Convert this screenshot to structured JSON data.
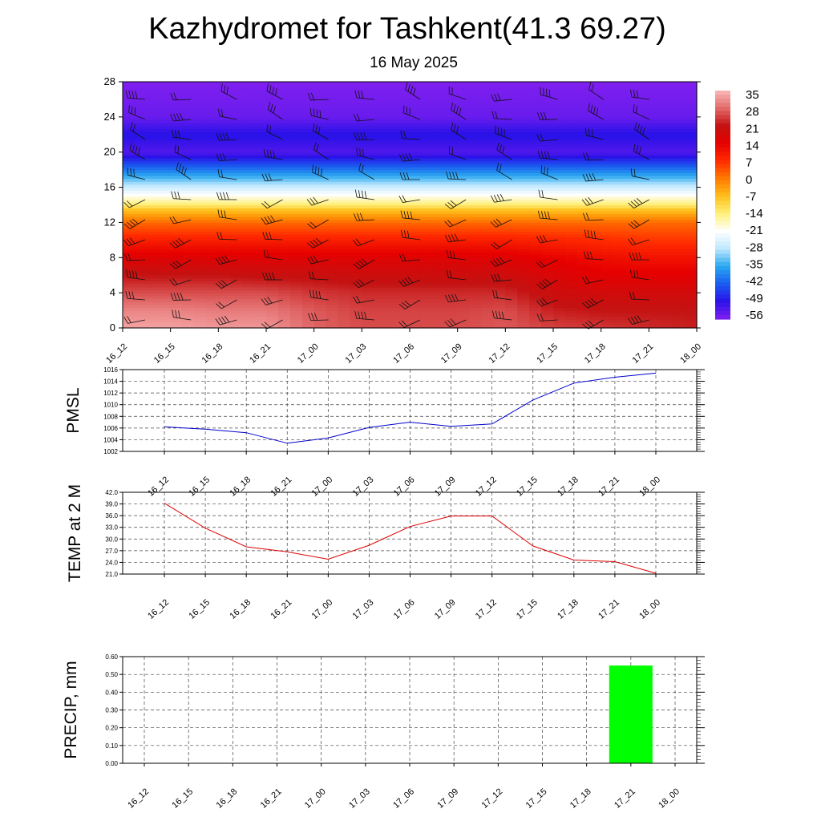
{
  "page": {
    "title": "Kazhydromet for Tashkent(41.3 69.27)",
    "subtitle": "16 May 2025"
  },
  "chart_data": [
    {
      "type": "heatmap",
      "title": "",
      "ylabel": "",
      "yticks": [
        "0",
        "4",
        "8",
        "12",
        "16",
        "20",
        "24",
        "28"
      ],
      "ylim": [
        0,
        28
      ],
      "x_ticks": [
        "16_12",
        "16_15",
        "16_18",
        "16_21",
        "17_00",
        "17_03",
        "17_06",
        "17_09",
        "17_12",
        "17_15",
        "17_18",
        "17_21",
        "18_00"
      ],
      "colorbar": {
        "labels": [
          "35",
          "28",
          "21",
          "14",
          "7",
          "0",
          "-7",
          "-14",
          "-21",
          "-28",
          "-35",
          "-42",
          "-49",
          "-56"
        ],
        "range": [
          -60,
          38
        ],
        "colors": [
          "#7f1fef",
          "#2a12e8",
          "#1a5df0",
          "#2aa8f0",
          "#bfe8ff",
          "#ffffff",
          "#fff07a",
          "#ffbf1a",
          "#ff7a00",
          "#ff2a00",
          "#e60000",
          "#c41212",
          "#e26a6a",
          "#fbb8b8"
        ]
      },
      "profiles": [
        {
          "y": 0,
          "values": [
            36,
            36,
            35,
            35,
            30,
            28,
            28,
            28,
            29,
            27,
            26,
            25,
            24
          ]
        },
        {
          "y": 2,
          "values": [
            33,
            33,
            32,
            32,
            29,
            27,
            27,
            27,
            28,
            24,
            23,
            23,
            23
          ]
        },
        {
          "y": 4,
          "values": [
            28,
            28,
            28,
            28,
            26,
            25,
            25,
            25,
            25,
            21,
            20,
            20,
            20
          ]
        },
        {
          "y": 6,
          "values": [
            23,
            23,
            23,
            22,
            22,
            21,
            21,
            21,
            21,
            18,
            16,
            16,
            16
          ]
        },
        {
          "y": 8,
          "values": [
            17,
            17,
            17,
            17,
            17,
            17,
            17,
            17,
            17,
            15,
            13,
            12,
            12
          ]
        },
        {
          "y": 10,
          "values": [
            10,
            10,
            10,
            10,
            10,
            10,
            10,
            10,
            10,
            9,
            8,
            7,
            7
          ]
        },
        {
          "y": 12,
          "values": [
            2,
            2,
            2,
            2,
            2,
            2,
            2,
            2,
            2,
            2,
            2,
            2,
            2
          ]
        },
        {
          "y": 13.5,
          "values": [
            -8,
            -8,
            -8,
            -8,
            -8,
            -8,
            -8,
            -8,
            -8,
            -8,
            -8,
            -8,
            -8
          ]
        },
        {
          "y": 14,
          "values": [
            -14,
            -14,
            -14,
            -14,
            -14,
            -14,
            -14,
            -14,
            -14,
            -14,
            -14,
            -14,
            -14
          ]
        },
        {
          "y": 16,
          "values": [
            -28,
            -28,
            -28,
            -28,
            -28,
            -28,
            -28,
            -28,
            -28,
            -28,
            -28,
            -28,
            -28
          ]
        },
        {
          "y": 18,
          "values": [
            -42,
            -42,
            -42,
            -42,
            -42,
            -42,
            -42,
            -42,
            -42,
            -42,
            -42,
            -42,
            -42
          ]
        },
        {
          "y": 20,
          "values": [
            -56,
            -56,
            -56,
            -56,
            -56,
            -56,
            -56,
            -56,
            -56,
            -56,
            -56,
            -56,
            -56
          ]
        },
        {
          "y": 22,
          "values": [
            -52,
            -52,
            -52,
            -52,
            -52,
            -52,
            -52,
            -52,
            -52,
            -52,
            -52,
            -52,
            -52
          ]
        },
        {
          "y": 24,
          "values": [
            -58,
            -58,
            -58,
            -58,
            -58,
            -58,
            -58,
            -58,
            -58,
            -58,
            -58,
            -58,
            -58
          ]
        },
        {
          "y": 28,
          "values": [
            -60,
            -60,
            -60,
            -60,
            -60,
            -60,
            -60,
            -60,
            -60,
            -60,
            -60,
            -60,
            -60
          ]
        }
      ]
    },
    {
      "type": "line",
      "title": "",
      "ylabel": "PMSL",
      "yticks": [
        "1002",
        "1004",
        "1006",
        "1008",
        "1010",
        "1012",
        "1014",
        "1016"
      ],
      "ylim": [
        1002,
        1016
      ],
      "x": [
        "16_12",
        "16_15",
        "16_18",
        "16_21",
        "17_00",
        "17_03",
        "17_06",
        "17_09",
        "17_12",
        "17_15",
        "17_18",
        "17_21",
        "18_00"
      ],
      "series": [
        {
          "values": [
            1006.2,
            1005.8,
            1005.2,
            1003.4,
            1004.3,
            1006.1,
            1007.0,
            1006.3,
            1006.7,
            1010.8,
            1013.7,
            1014.7,
            1015.4
          ],
          "color": "#0000cc"
        }
      ]
    },
    {
      "type": "line",
      "title": "",
      "ylabel": "TEMP at 2 M",
      "yticks": [
        "21.0",
        "24.0",
        "27.0",
        "30.0",
        "33.0",
        "36.0",
        "39.0",
        "42.0"
      ],
      "ylim": [
        21,
        42
      ],
      "x": [
        "16_12",
        "16_15",
        "16_18",
        "16_21",
        "17_00",
        "17_03",
        "17_06",
        "17_09",
        "17_12",
        "17_15",
        "17_18",
        "17_21",
        "18_00"
      ],
      "series": [
        {
          "values": [
            39.2,
            32.8,
            28.0,
            26.7,
            24.8,
            28.4,
            33.2,
            35.9,
            35.9,
            28.2,
            24.6,
            24.2,
            21.2
          ],
          "color": "#dd0000"
        }
      ]
    },
    {
      "type": "bar",
      "title": "",
      "ylabel": "PRECIP, mm",
      "yticks": [
        "0.00",
        "0.10",
        "0.20",
        "0.30",
        "0.40",
        "0.50",
        "0.60"
      ],
      "ylim": [
        0,
        0.6
      ],
      "categories": [
        "16_12",
        "16_15",
        "16_18",
        "16_21",
        "17_00",
        "17_03",
        "17_06",
        "17_09",
        "17_12",
        "17_15",
        "17_18",
        "17_21",
        "18_00"
      ],
      "values": [
        0,
        0,
        0,
        0,
        0,
        0,
        0,
        0,
        0,
        0,
        0,
        0.55,
        0
      ],
      "color": "#00ff00"
    }
  ]
}
